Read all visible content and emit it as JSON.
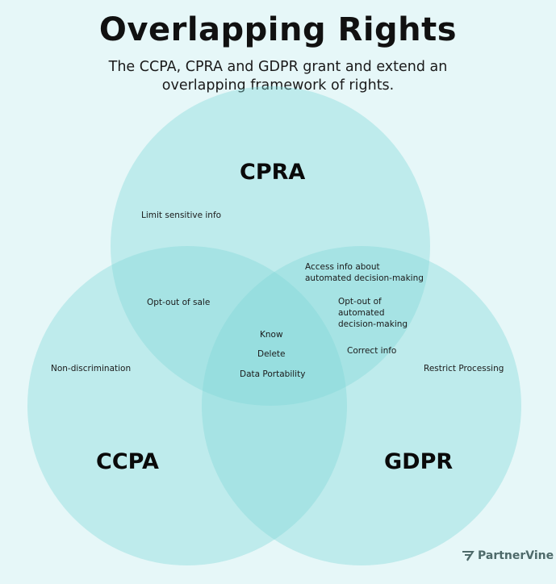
{
  "title": "Overlapping Rights",
  "subtitle": "The CCPA, CPRA and GDPR grant and extend an overlapping framework of rights.",
  "colors": {
    "background": "#e6f7f8",
    "circle_fill": "#7fd8d8",
    "text": "#111111",
    "logo": "#4e6a6a"
  },
  "sets": {
    "cpra": "CPRA",
    "ccpa": "CCPA",
    "gdpr": "GDPR"
  },
  "items": {
    "cpra_only": [
      "Limit sensitive info"
    ],
    "ccpa_only": [
      "Non-discrimination"
    ],
    "gdpr_only": [
      "Restrict Processing"
    ],
    "cpra_ccpa": [
      "Opt-out of sale"
    ],
    "cpra_gdpr": [
      "Access info about automated decision-making",
      "Opt-out of automated decision-making",
      "Correct info"
    ],
    "all_three": [
      "Know",
      "Delete",
      "Data Portability"
    ]
  },
  "logo": {
    "text": "PartnerVine",
    "icon": "partnervine-logo-icon"
  }
}
